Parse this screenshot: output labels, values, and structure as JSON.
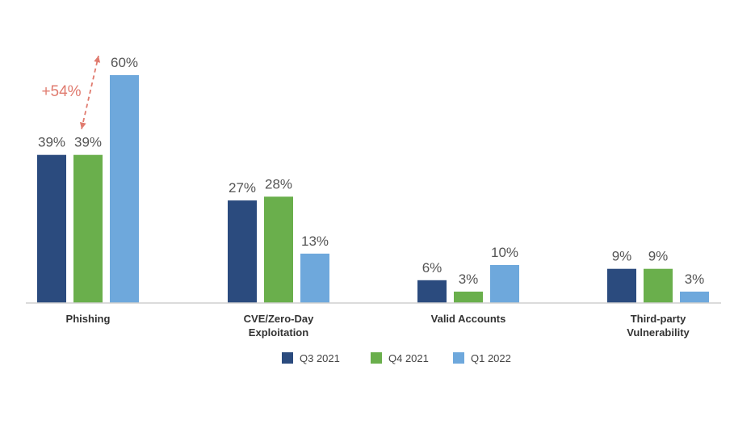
{
  "chart_data": {
    "type": "bar",
    "categories": [
      [
        "Phishing"
      ],
      [
        "CVE/Zero-Day",
        "Exploitation"
      ],
      [
        "Valid Accounts"
      ],
      [
        "Third-party",
        "Vulnerability"
      ]
    ],
    "series": [
      {
        "name": "Q3 2021",
        "color": "#2b4b7e",
        "values": [
          39,
          27,
          6,
          9
        ],
        "labels": [
          "39%",
          "27%",
          "6%",
          "9%"
        ]
      },
      {
        "name": "Q4 2021",
        "color": "#6aaf4c",
        "values": [
          39,
          28,
          3,
          9
        ],
        "labels": [
          "39%",
          "28%",
          "3%",
          "9%"
        ]
      },
      {
        "name": "Q1 2022",
        "color": "#6ea8dc",
        "values": [
          60,
          13,
          10,
          3
        ],
        "labels": [
          "60%",
          "13%",
          "10%",
          "3%"
        ]
      }
    ],
    "annotation": {
      "text": "+54%",
      "color": "#e07b6f",
      "category_index": 0,
      "from_series": 1,
      "to_series": 2
    },
    "ylim": [
      0,
      60
    ],
    "grid": false,
    "legend_position": "bottom"
  }
}
